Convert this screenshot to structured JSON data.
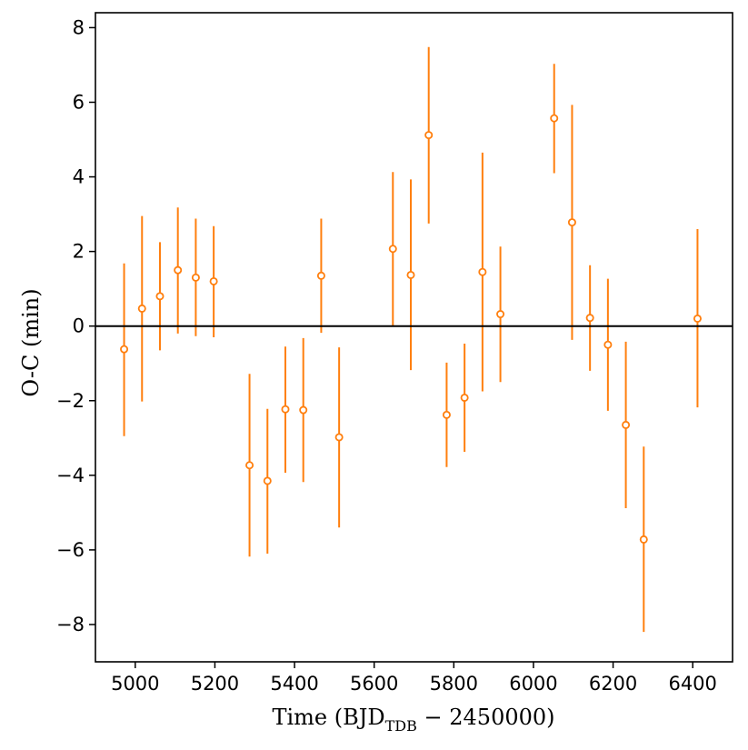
{
  "chart_data": {
    "type": "scatter",
    "title": "",
    "xlabel": "Time (BJD",
    "xlabel_sub": "TDB",
    "xlabel_suffix": " − 2450000)",
    "ylabel": "O-C (min)",
    "xlim": [
      4900,
      6500
    ],
    "ylim": [
      -9,
      8.4
    ],
    "xticks": [
      5000,
      5200,
      5400,
      5600,
      5800,
      6000,
      6200,
      6400
    ],
    "yticks": [
      -8,
      -6,
      -4,
      -2,
      0,
      2,
      4,
      6,
      8
    ],
    "xtick_labels": [
      "5000",
      "5200",
      "5400",
      "5600",
      "5800",
      "6000",
      "6200",
      "6400"
    ],
    "ytick_labels": [
      "−8",
      "−6",
      "−4",
      "−2",
      "0",
      "2",
      "4",
      "6",
      "8"
    ],
    "reference_line_y": 0,
    "grid": false,
    "legend": "none",
    "series": [
      {
        "color": "#ff7f0e",
        "marker": "open-circle",
        "points": [
          {
            "x": 4972,
            "y": -0.62,
            "lo": -2.95,
            "hi": 1.68
          },
          {
            "x": 5017,
            "y": 0.47,
            "lo": -2.02,
            "hi": 2.95
          },
          {
            "x": 5062,
            "y": 0.8,
            "lo": -0.65,
            "hi": 2.25
          },
          {
            "x": 5107,
            "y": 1.5,
            "lo": -0.2,
            "hi": 3.18
          },
          {
            "x": 5152,
            "y": 1.3,
            "lo": -0.27,
            "hi": 2.88
          },
          {
            "x": 5197,
            "y": 1.2,
            "lo": -0.3,
            "hi": 2.68
          },
          {
            "x": 5287,
            "y": -3.73,
            "lo": -6.18,
            "hi": -1.28
          },
          {
            "x": 5332,
            "y": -4.15,
            "lo": -6.1,
            "hi": -2.22
          },
          {
            "x": 5377,
            "y": -2.23,
            "lo": -3.93,
            "hi": -0.55
          },
          {
            "x": 5422,
            "y": -2.25,
            "lo": -4.18,
            "hi": -0.32
          },
          {
            "x": 5467,
            "y": 1.35,
            "lo": -0.18,
            "hi": 2.88
          },
          {
            "x": 5512,
            "y": -2.98,
            "lo": -5.4,
            "hi": -0.57
          },
          {
            "x": 5647,
            "y": 2.07,
            "lo": 0.0,
            "hi": 4.13
          },
          {
            "x": 5692,
            "y": 1.37,
            "lo": -1.18,
            "hi": 3.93
          },
          {
            "x": 5737,
            "y": 5.12,
            "lo": 2.75,
            "hi": 7.48
          },
          {
            "x": 5782,
            "y": -2.38,
            "lo": -3.78,
            "hi": -0.98
          },
          {
            "x": 5827,
            "y": -1.92,
            "lo": -3.37,
            "hi": -0.47
          },
          {
            "x": 5872,
            "y": 1.45,
            "lo": -1.75,
            "hi": 4.65
          },
          {
            "x": 5917,
            "y": 0.32,
            "lo": -1.5,
            "hi": 2.13
          },
          {
            "x": 6052,
            "y": 5.57,
            "lo": 4.1,
            "hi": 7.03
          },
          {
            "x": 6097,
            "y": 2.78,
            "lo": -0.37,
            "hi": 5.93
          },
          {
            "x": 6142,
            "y": 0.22,
            "lo": -1.2,
            "hi": 1.63
          },
          {
            "x": 6187,
            "y": -0.5,
            "lo": -2.27,
            "hi": 1.27
          },
          {
            "x": 6232,
            "y": -2.65,
            "lo": -4.88,
            "hi": -0.42
          },
          {
            "x": 6277,
            "y": -5.72,
            "lo": -8.2,
            "hi": -3.23
          },
          {
            "x": 6412,
            "y": 0.2,
            "lo": -2.18,
            "hi": 2.6
          }
        ]
      }
    ]
  }
}
